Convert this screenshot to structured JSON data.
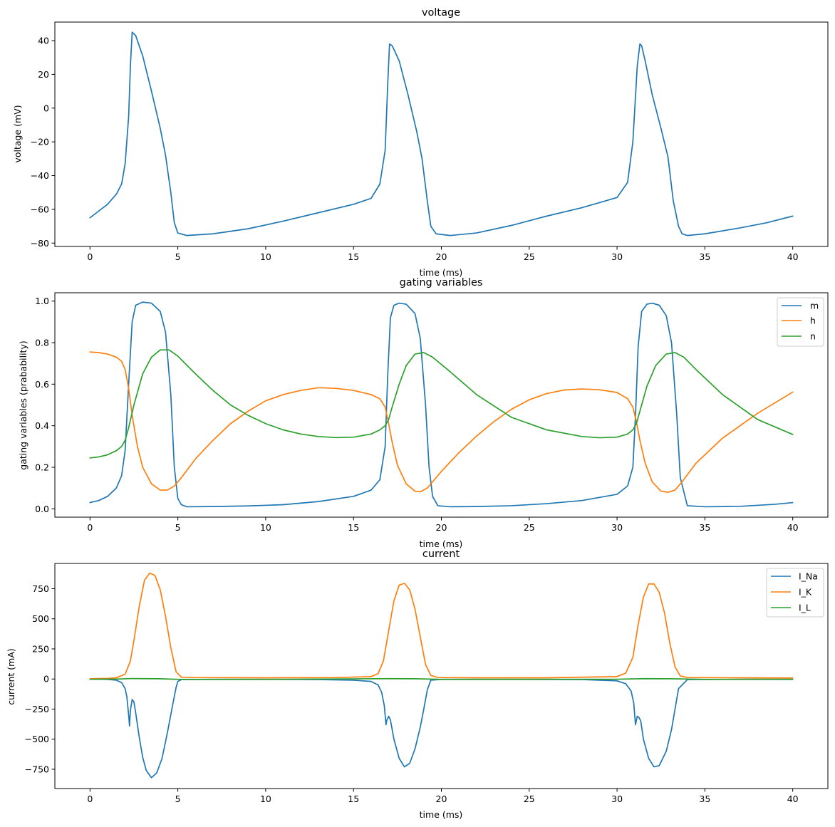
{
  "chart_data": [
    {
      "type": "line",
      "title": "voltage",
      "xlabel": "time (ms)",
      "ylabel": "voltage (mV)",
      "xlim": [
        -2,
        42
      ],
      "ylim": [
        -82,
        51
      ],
      "xticks": [
        0,
        5,
        10,
        15,
        20,
        25,
        30,
        35,
        40
      ],
      "yticks": [
        40,
        20,
        0,
        -20,
        -40,
        -60,
        -80
      ],
      "ytick_labels": [
        "40",
        "20",
        "0",
        "−20",
        "−40",
        "−60",
        "−80"
      ],
      "legend": false,
      "series": [
        {
          "color": "#1f77b4",
          "x": [
            0,
            0.5,
            1,
            1.5,
            1.8,
            2.0,
            2.2,
            2.3,
            2.4,
            2.6,
            3.0,
            3.5,
            4.0,
            4.3,
            4.6,
            4.8,
            5.0,
            5.5,
            7,
            9,
            11,
            13,
            15,
            16,
            16.5,
            16.8,
            16.95,
            17.05,
            17.2,
            17.6,
            18.1,
            18.6,
            18.9,
            19.2,
            19.4,
            19.7,
            20.5,
            22,
            24,
            26,
            28,
            30,
            30.6,
            30.9,
            31.15,
            31.3,
            31.4,
            31.6,
            32.0,
            32.5,
            32.9,
            33.2,
            33.5,
            33.7,
            34.0,
            35,
            37,
            38.5,
            40
          ],
          "y": [
            -65,
            -61,
            -57,
            -51,
            -45,
            -33,
            -5,
            25,
            45,
            43,
            31,
            10,
            -12,
            -28,
            -50,
            -68,
            -74,
            -75.5,
            -74.5,
            -71.5,
            -67,
            -62,
            -57,
            -53.5,
            -45,
            -25,
            15,
            38,
            37,
            28,
            8,
            -14,
            -30,
            -55,
            -70,
            -74.5,
            -75.5,
            -74,
            -69.5,
            -64,
            -59,
            -53,
            -44,
            -20,
            25,
            38,
            37,
            28,
            8,
            -12,
            -29,
            -55,
            -70,
            -74.5,
            -75.5,
            -74.5,
            -71,
            -68,
            -64
          ]
        }
      ]
    },
    {
      "type": "line",
      "title": "gating variables",
      "xlabel": "time (ms)",
      "ylabel": "gating variables (prabability)",
      "xlim": [
        -2,
        42
      ],
      "ylim": [
        -0.04,
        1.04
      ],
      "xticks": [
        0,
        5,
        10,
        15,
        20,
        25,
        30,
        35,
        40
      ],
      "yticks": [
        0.0,
        0.2,
        0.4,
        0.6,
        0.8,
        1.0
      ],
      "ytick_labels": [
        "0.0",
        "0.2",
        "0.4",
        "0.6",
        "0.8",
        "1.0"
      ],
      "legend": true,
      "legend_position": "top-right",
      "series": [
        {
          "name": "m",
          "color": "#1f77b4",
          "x": [
            0,
            0.5,
            1,
            1.5,
            1.8,
            2.0,
            2.2,
            2.4,
            2.6,
            3.0,
            3.5,
            4.0,
            4.3,
            4.6,
            4.8,
            5.0,
            5.2,
            5.5,
            7,
            9,
            11,
            13,
            15,
            16,
            16.5,
            16.8,
            16.95,
            17.1,
            17.3,
            17.6,
            18.0,
            18.5,
            18.8,
            19.1,
            19.3,
            19.5,
            19.8,
            20.5,
            22,
            24,
            26,
            28,
            30,
            30.6,
            30.9,
            31.05,
            31.2,
            31.4,
            31.7,
            32.0,
            32.4,
            32.8,
            33.1,
            33.4,
            33.6,
            34.0,
            35,
            37,
            39,
            40
          ],
          "y": [
            0.03,
            0.04,
            0.06,
            0.1,
            0.16,
            0.28,
            0.6,
            0.9,
            0.98,
            0.995,
            0.99,
            0.95,
            0.85,
            0.55,
            0.2,
            0.05,
            0.02,
            0.01,
            0.011,
            0.014,
            0.02,
            0.035,
            0.06,
            0.09,
            0.14,
            0.3,
            0.65,
            0.92,
            0.98,
            0.99,
            0.985,
            0.94,
            0.82,
            0.5,
            0.2,
            0.06,
            0.015,
            0.01,
            0.011,
            0.015,
            0.025,
            0.04,
            0.07,
            0.11,
            0.2,
            0.45,
            0.78,
            0.95,
            0.985,
            0.99,
            0.98,
            0.93,
            0.8,
            0.45,
            0.15,
            0.015,
            0.01,
            0.012,
            0.022,
            0.03
          ]
        },
        {
          "name": "h",
          "color": "#ff7f0e",
          "x": [
            0,
            0.5,
            1,
            1.5,
            1.8,
            2.0,
            2.2,
            2.4,
            2.7,
            3.0,
            3.5,
            4.0,
            4.4,
            4.8,
            5.2,
            6,
            7,
            8,
            9,
            10,
            11,
            12,
            13,
            14,
            15,
            16,
            16.5,
            16.8,
            17.0,
            17.2,
            17.5,
            18.0,
            18.5,
            18.8,
            19.2,
            19.6,
            20,
            21,
            22,
            23,
            24,
            25,
            26,
            27,
            28,
            29,
            30,
            30.6,
            30.9,
            31.1,
            31.3,
            31.6,
            32.0,
            32.5,
            32.9,
            33.3,
            33.7,
            34.5,
            36,
            38,
            40
          ],
          "y": [
            0.755,
            0.752,
            0.745,
            0.73,
            0.71,
            0.67,
            0.58,
            0.45,
            0.3,
            0.2,
            0.12,
            0.09,
            0.09,
            0.11,
            0.15,
            0.24,
            0.33,
            0.41,
            0.47,
            0.52,
            0.55,
            0.57,
            0.583,
            0.58,
            0.57,
            0.55,
            0.53,
            0.49,
            0.41,
            0.32,
            0.21,
            0.12,
            0.085,
            0.082,
            0.1,
            0.14,
            0.18,
            0.27,
            0.35,
            0.42,
            0.48,
            0.525,
            0.555,
            0.572,
            0.577,
            0.573,
            0.56,
            0.53,
            0.49,
            0.42,
            0.33,
            0.22,
            0.13,
            0.085,
            0.08,
            0.09,
            0.13,
            0.22,
            0.34,
            0.46,
            0.562
          ]
        },
        {
          "name": "n",
          "color": "#2ca02c",
          "x": [
            0,
            0.5,
            1,
            1.5,
            1.8,
            2.0,
            2.2,
            2.5,
            3.0,
            3.5,
            4.0,
            4.5,
            5.0,
            6,
            7,
            8,
            9,
            10,
            11,
            12,
            13,
            14,
            15,
            16,
            16.5,
            16.8,
            17.0,
            17.2,
            17.6,
            18.0,
            18.5,
            19.0,
            19.5,
            20.5,
            22,
            24,
            26,
            28,
            29,
            30,
            30.6,
            30.9,
            31.1,
            31.3,
            31.7,
            32.2,
            32.8,
            33.3,
            33.8,
            34.5,
            36,
            38,
            40
          ],
          "y": [
            0.245,
            0.25,
            0.26,
            0.28,
            0.3,
            0.33,
            0.39,
            0.5,
            0.65,
            0.73,
            0.765,
            0.765,
            0.735,
            0.65,
            0.57,
            0.5,
            0.45,
            0.41,
            0.38,
            0.36,
            0.348,
            0.343,
            0.345,
            0.36,
            0.38,
            0.4,
            0.43,
            0.49,
            0.6,
            0.69,
            0.745,
            0.752,
            0.73,
            0.66,
            0.55,
            0.44,
            0.38,
            0.348,
            0.342,
            0.345,
            0.36,
            0.38,
            0.41,
            0.47,
            0.59,
            0.69,
            0.745,
            0.752,
            0.73,
            0.67,
            0.55,
            0.43,
            0.358
          ]
        }
      ]
    },
    {
      "type": "line",
      "title": "current",
      "xlabel": "time (ms)",
      "ylabel": "current (mA)",
      "xlim": [
        -2,
        42
      ],
      "ylim": [
        -910,
        960
      ],
      "xticks": [
        0,
        5,
        10,
        15,
        20,
        25,
        30,
        35,
        40
      ],
      "yticks": [
        750,
        500,
        250,
        0,
        -250,
        -500,
        -750
      ],
      "ytick_labels": [
        "750",
        "500",
        "250",
        "0",
        "−250",
        "−500",
        "−750"
      ],
      "legend": true,
      "legend_position": "top-right",
      "series": [
        {
          "name": "I_Na",
          "color": "#1f77b4",
          "x": [
            0,
            1,
            1.5,
            1.8,
            2.0,
            2.1,
            2.2,
            2.25,
            2.3,
            2.4,
            2.5,
            2.6,
            2.8,
            3.0,
            3.2,
            3.5,
            3.8,
            4.1,
            4.4,
            4.7,
            4.9,
            5.0,
            5.2,
            7,
            10,
            13,
            15,
            16,
            16.4,
            16.6,
            16.75,
            16.85,
            16.9,
            17.0,
            17.1,
            17.3,
            17.6,
            17.9,
            18.2,
            18.5,
            18.8,
            19.0,
            19.2,
            19.4,
            20,
            24,
            28,
            30,
            30.5,
            30.8,
            30.95,
            31.05,
            31.15,
            31.25,
            31.35,
            31.5,
            31.8,
            32.1,
            32.4,
            32.8,
            33.1,
            33.3,
            33.5,
            34,
            37,
            40
          ],
          "y": [
            0,
            -3,
            -10,
            -30,
            -80,
            -150,
            -300,
            -390,
            -260,
            -170,
            -190,
            -280,
            -480,
            -650,
            -760,
            -820,
            -780,
            -660,
            -450,
            -220,
            -70,
            -20,
            -5,
            -3,
            -3,
            -5,
            -10,
            -20,
            -50,
            -110,
            -220,
            -380,
            -340,
            -310,
            -340,
            -500,
            -660,
            -730,
            -700,
            -580,
            -400,
            -250,
            -90,
            -10,
            -3,
            -3,
            -5,
            -15,
            -40,
            -100,
            -200,
            -380,
            -310,
            -320,
            -350,
            -500,
            -660,
            -730,
            -720,
            -600,
            -420,
            -250,
            -80,
            -5,
            -3,
            -3
          ]
        },
        {
          "name": "I_K",
          "color": "#ff7f0e",
          "x": [
            0,
            1,
            1.5,
            2.0,
            2.3,
            2.5,
            2.8,
            3.1,
            3.4,
            3.7,
            4.0,
            4.3,
            4.6,
            4.9,
            5.2,
            6,
            10,
            14,
            16,
            16.4,
            16.7,
            17.0,
            17.3,
            17.6,
            17.9,
            18.2,
            18.5,
            18.8,
            19.1,
            19.4,
            19.8,
            22,
            26,
            30,
            30.5,
            30.9,
            31.2,
            31.5,
            31.8,
            32.1,
            32.4,
            32.7,
            33.0,
            33.3,
            33.6,
            34.0,
            37,
            40
          ],
          "y": [
            2,
            5,
            10,
            40,
            150,
            320,
            600,
            820,
            880,
            860,
            740,
            520,
            260,
            60,
            15,
            12,
            10,
            12,
            20,
            45,
            150,
            400,
            650,
            780,
            795,
            740,
            580,
            350,
            120,
            30,
            12,
            10,
            10,
            20,
            50,
            180,
            450,
            680,
            790,
            790,
            720,
            550,
            300,
            100,
            25,
            12,
            10,
            8
          ]
        },
        {
          "name": "I_L",
          "color": "#2ca02c",
          "x": [
            0,
            1.5,
            2.4,
            3.0,
            4.0,
            5.0,
            10,
            17,
            18.5,
            20,
            30,
            31.5,
            33,
            35,
            40
          ],
          "y": [
            -2,
            -1,
            4,
            3,
            2,
            -3,
            -3,
            3,
            2,
            -3,
            -2,
            3,
            2,
            -3,
            -2
          ]
        }
      ]
    }
  ]
}
